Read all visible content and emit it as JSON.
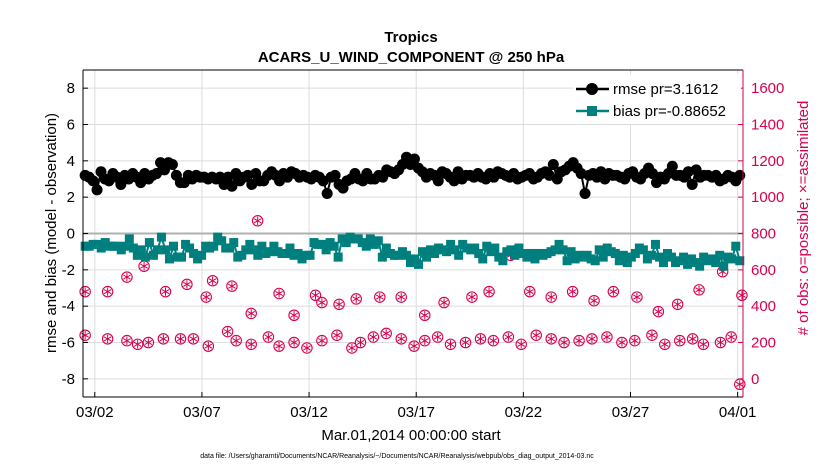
{
  "chart_data": {
    "type": "line",
    "title": "Tropics",
    "subtitle": "ACARS_U_WIND_COMPONENT @ 250 hPa",
    "xlabel": "Mar.01,2014 00:00:00 start",
    "ylabel_left": "rmse and bias (model - observation)",
    "ylabel_right": "# of obs: o=possible; ×=assimilated",
    "footnote": "data file: /Users/gharamti/Documents/NCAR/Reanalysis/~/Documents/NCAR/Reanalysis/webpub/obs_diag_output_2014-03.nc",
    "x_tick_labels": [
      "03/02",
      "03/07",
      "03/12",
      "03/17",
      "03/22",
      "03/27",
      "04/01"
    ],
    "x_tick_days": [
      1,
      6,
      11,
      16,
      21,
      26,
      31
    ],
    "xlim_days": [
      0.45,
      31.25
    ],
    "ylim_left": [
      -9,
      9
    ],
    "y_ticks_left": [
      8,
      6,
      4,
      2,
      0,
      -2,
      -4,
      -6,
      -8
    ],
    "ylim_right": [
      -100,
      1700
    ],
    "y_ticks_right": [
      1600,
      1400,
      1200,
      1000,
      800,
      600,
      400,
      200,
      0
    ],
    "grid": true,
    "legend_position": "top-right",
    "colors": {
      "rmse": "#000000",
      "bias": "#007f7f",
      "obs": "#d6004f",
      "zero_line": "#b0b0b0"
    },
    "series": [
      {
        "name": "rmse pr=3.1612",
        "axis": "left",
        "marker": "circle",
        "values": [
          3.2,
          3.1,
          2.9,
          2.4,
          3.4,
          3.0,
          2.9,
          3.3,
          3.1,
          2.7,
          3.2,
          3.0,
          3.3,
          3.1,
          2.8,
          3.3,
          3.0,
          3.2,
          3.3,
          3.9,
          3.5,
          3.9,
          3.8,
          3.2,
          2.8,
          2.8,
          3.2,
          3.0,
          3.2,
          3.1,
          3.1,
          3.0,
          3.1,
          3.0,
          3.1,
          2.7,
          3.1,
          2.6,
          3.3,
          2.9,
          3.1,
          3.2,
          2.7,
          3.3,
          2.9,
          2.9,
          3.2,
          3.4,
          3.2,
          2.9,
          3.3,
          3.1,
          3.4,
          3.3,
          3.1,
          3.2,
          3.1,
          3.0,
          3.2,
          3.1,
          2.9,
          2.2,
          3.1,
          3.2,
          2.7,
          2.5,
          2.9,
          3.0,
          3.3,
          3.0,
          2.9,
          3.3,
          3.0,
          3.0,
          3.2,
          3.1,
          3.5,
          3.4,
          3.3,
          3.5,
          3.8,
          4.2,
          3.8,
          4.1,
          3.6,
          3.4,
          3.1,
          3.3,
          3.2,
          2.9,
          3.4,
          3.3,
          3.1,
          2.9,
          3.4,
          3.0,
          3.2,
          3.2,
          3.1,
          3.3,
          3.1,
          3.0,
          3.3,
          3.1,
          3.4,
          3.3,
          3.2,
          3.1,
          3.3,
          3.0,
          3.1,
          3.2,
          3.3,
          3.0,
          3.1,
          3.3,
          3.4,
          3.2,
          3.8,
          3.0,
          3.4,
          3.5,
          3.7,
          3.9,
          3.6,
          3.3,
          2.2,
          3.2,
          3.3,
          3.1,
          3.4,
          3.0,
          3.3,
          3.2,
          3.2,
          3.1,
          3.0,
          3.3,
          3.4,
          3.1,
          3.0,
          3.3,
          3.6,
          3.3,
          2.8,
          3.1,
          3.0,
          3.3,
          3.7,
          3.2,
          3.2,
          3.1,
          3.4,
          2.7,
          3.5,
          3.1,
          3.2,
          3.2,
          3.1,
          3.2,
          2.9,
          3.0,
          3.2,
          3.1,
          2.9,
          3.2
        ]
      },
      {
        "name": "bias pr=-0.88652",
        "axis": "left",
        "marker": "square",
        "values": [
          -0.7,
          -0.7,
          -0.6,
          -0.6,
          -0.8,
          -0.5,
          -0.7,
          -0.7,
          -0.7,
          -0.9,
          -0.7,
          -0.3,
          -0.8,
          -1.2,
          -0.9,
          -1.3,
          -0.5,
          -1.2,
          -0.9,
          -0.2,
          -0.9,
          -1.4,
          -0.7,
          -1.3,
          -1.3,
          -0.6,
          -0.8,
          -1.1,
          -1.4,
          -1.2,
          -0.7,
          -0.8,
          -0.7,
          -0.2,
          -0.4,
          -0.8,
          -0.8,
          -0.5,
          -1.3,
          -1.2,
          -0.9,
          -0.6,
          -0.9,
          -1.2,
          -0.7,
          -1.1,
          -1.0,
          -0.7,
          -1.0,
          -1.1,
          -1.1,
          -0.8,
          -1.2,
          -1.1,
          -1.4,
          -1.2,
          -1.2,
          -0.5,
          -0.6,
          -0.6,
          -0.9,
          -0.5,
          -0.7,
          -1.3,
          -0.3,
          -0.5,
          -0.2,
          -0.3,
          -0.3,
          -0.5,
          -0.7,
          -0.3,
          -0.6,
          -0.4,
          -1.3,
          -0.8,
          -1.1,
          -1.2,
          -1.2,
          -1.0,
          -1.2,
          -1.6,
          -1.4,
          -1.7,
          -1.0,
          -1.3,
          -0.9,
          -1.1,
          -0.8,
          -0.9,
          -1.0,
          -0.6,
          -0.9,
          -1.2,
          -0.6,
          -0.8,
          -0.9,
          -0.8,
          -1.1,
          -1.4,
          -0.7,
          -1.0,
          -0.8,
          -1.3,
          -1.5,
          -1.0,
          -0.9,
          -1.2,
          -0.8,
          -1.1,
          -1.3,
          -1.1,
          -1.4,
          -1.1,
          -1.2,
          -1.1,
          -1.0,
          -0.9,
          -0.6,
          -0.9,
          -1.5,
          -1.0,
          -1.4,
          -1.2,
          -1.3,
          -1.2,
          -1.4,
          -1.5,
          -0.9,
          -1.3,
          -0.8,
          -1.0,
          -1.1,
          -1.5,
          -1.2,
          -1.6,
          -1.3,
          -1.1,
          -0.8,
          -0.9,
          -1.4,
          -1.2,
          -0.6,
          -1.3,
          -1.6,
          -1.1,
          -1.3,
          -1.6,
          -1.5,
          -1.3,
          -1.7,
          -1.4,
          -1.6,
          -1.8,
          -1.3,
          -1.5,
          -1.4,
          -1.6,
          -1.2,
          -1.8,
          -1.3,
          -1.4,
          -0.7,
          -1.5
        ]
      },
      {
        "name": "obs possible/assimilated (high)",
        "axis": "right",
        "marker": "circle-star",
        "points": [
          [
            0.55,
            480
          ],
          [
            1.6,
            480
          ],
          [
            2.5,
            560
          ],
          [
            3.3,
            620
          ],
          [
            4.3,
            480
          ],
          [
            5.3,
            520
          ],
          [
            6.2,
            450
          ],
          [
            6.5,
            540
          ],
          [
            7.4,
            510
          ],
          [
            8.3,
            360
          ],
          [
            8.6,
            870
          ],
          [
            9.6,
            470
          ],
          [
            10.3,
            350
          ],
          [
            11.3,
            460
          ],
          [
            11.6,
            420
          ],
          [
            12.4,
            410
          ],
          [
            13.2,
            440
          ],
          [
            14.3,
            450
          ],
          [
            15.3,
            450
          ],
          [
            16.4,
            350
          ],
          [
            17.3,
            420
          ],
          [
            18.6,
            450
          ],
          [
            19.4,
            480
          ],
          [
            20.4,
            680
          ],
          [
            21.3,
            480
          ],
          [
            22.3,
            450
          ],
          [
            23.3,
            480
          ],
          [
            24.3,
            430
          ],
          [
            25.2,
            480
          ],
          [
            26.3,
            450
          ],
          [
            27.3,
            370
          ],
          [
            28.2,
            410
          ],
          [
            29.2,
            490
          ],
          [
            30.3,
            590
          ],
          [
            31.2,
            460
          ]
        ]
      },
      {
        "name": "obs possible/assimilated (low)",
        "axis": "right",
        "marker": "circle-star",
        "points": [
          [
            0.55,
            240
          ],
          [
            1.6,
            220
          ],
          [
            2.5,
            210
          ],
          [
            3.0,
            190
          ],
          [
            3.5,
            200
          ],
          [
            4.2,
            220
          ],
          [
            5.0,
            220
          ],
          [
            5.6,
            220
          ],
          [
            6.3,
            180
          ],
          [
            7.2,
            260
          ],
          [
            7.6,
            210
          ],
          [
            8.3,
            190
          ],
          [
            9.1,
            230
          ],
          [
            9.6,
            180
          ],
          [
            10.3,
            200
          ],
          [
            10.9,
            170
          ],
          [
            11.6,
            210
          ],
          [
            12.3,
            240
          ],
          [
            13.0,
            170
          ],
          [
            13.4,
            200
          ],
          [
            14.0,
            230
          ],
          [
            14.6,
            250
          ],
          [
            15.3,
            220
          ],
          [
            15.9,
            180
          ],
          [
            16.4,
            210
          ],
          [
            17.0,
            230
          ],
          [
            17.6,
            190
          ],
          [
            18.3,
            200
          ],
          [
            19.0,
            220
          ],
          [
            19.6,
            210
          ],
          [
            20.3,
            230
          ],
          [
            20.9,
            190
          ],
          [
            21.6,
            240
          ],
          [
            22.3,
            220
          ],
          [
            22.9,
            200
          ],
          [
            23.6,
            210
          ],
          [
            24.2,
            220
          ],
          [
            24.9,
            230
          ],
          [
            25.6,
            200
          ],
          [
            26.2,
            210
          ],
          [
            27.0,
            240
          ],
          [
            27.6,
            190
          ],
          [
            28.3,
            210
          ],
          [
            28.9,
            220
          ],
          [
            29.4,
            190
          ],
          [
            30.2,
            200
          ],
          [
            30.7,
            230
          ],
          [
            31.1,
            -30
          ]
        ]
      }
    ]
  }
}
